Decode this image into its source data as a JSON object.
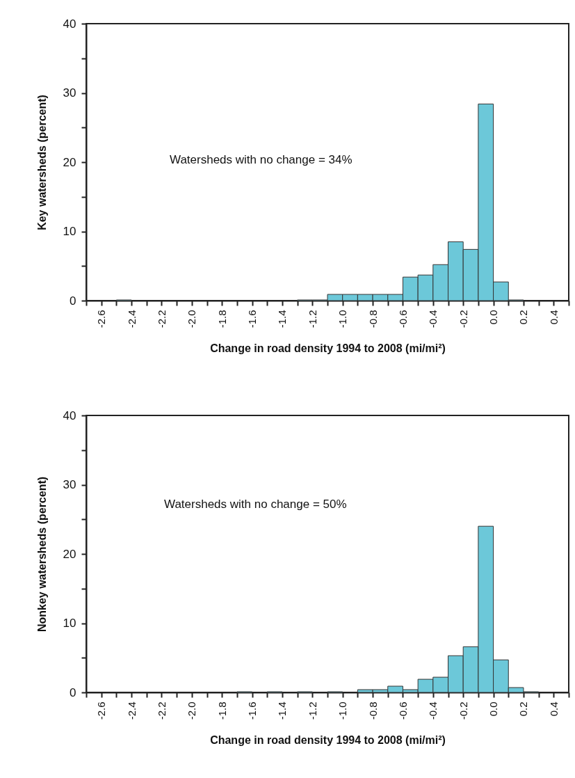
{
  "chart_data": [
    {
      "type": "histogram",
      "xlabel": "Change in road density 1994 to 2008 (mi/mi²)",
      "ylabel": "Key watersheds (percent)",
      "color": "#6cc8d9",
      "bins": [
        -2.7,
        -2.6,
        -2.5,
        -2.4,
        -2.3,
        -2.2,
        -2.1,
        -2.0,
        -1.9,
        -1.8,
        -1.7,
        -1.6,
        -1.5,
        -1.4,
        -1.3,
        -1.2,
        -1.1,
        -1.0,
        -0.9,
        -0.8,
        -0.7,
        -0.6,
        -0.5,
        -0.4,
        -0.3,
        -0.2,
        -0.1,
        0.0,
        0.1,
        0.2,
        0.3,
        0.4,
        0.5
      ],
      "values": [
        0,
        0,
        0.1,
        0,
        0,
        0,
        0,
        0,
        0,
        0,
        0,
        0,
        0,
        0,
        0.1,
        0.1,
        0.9,
        0.9,
        0.9,
        0.9,
        0.9,
        3.4,
        3.7,
        5.2,
        8.5,
        7.4,
        28.4,
        2.7,
        0.1,
        0,
        0,
        0
      ],
      "xlim": [
        -2.7,
        0.5
      ],
      "xticks": [
        {
          "value": -2.7,
          "label": null
        },
        -2.6,
        {
          "value": -2.5,
          "label": null
        },
        -2.4,
        {
          "value": -2.3,
          "label": null
        },
        -2.2,
        {
          "value": -2.1,
          "label": null
        },
        {
          "value": -2,
          "label": "-2.0"
        },
        {
          "value": -1.9,
          "label": null
        },
        -1.8,
        {
          "value": -1.7,
          "label": null
        },
        -1.6,
        {
          "value": -1.5,
          "label": null
        },
        -1.4,
        {
          "value": -1.3,
          "label": null
        },
        -1.2,
        {
          "value": -1.1,
          "label": null
        },
        {
          "value": -1,
          "label": "-1.0"
        },
        {
          "value": -0.9,
          "label": null
        },
        -0.8,
        {
          "value": -0.7,
          "label": null
        },
        -0.6,
        {
          "value": -0.5,
          "label": null
        },
        -0.4,
        {
          "value": -0.3,
          "label": null
        },
        -0.2,
        {
          "value": -0.1,
          "label": null
        },
        {
          "value": 0,
          "label": "0.0"
        },
        {
          "value": 0.1,
          "label": null
        },
        0.2,
        {
          "value": 0.3,
          "label": null
        },
        0.4,
        {
          "value": 0.5,
          "label": null
        }
      ],
      "ylim": [
        0,
        40
      ],
      "yticks": [
        0,
        {
          "value": 5,
          "label": null
        },
        10,
        {
          "value": 15,
          "label": null
        },
        20,
        {
          "value": 25,
          "label": null
        },
        30,
        {
          "value": 35,
          "label": null
        },
        40
      ],
      "annotations": [
        "Watersheds with no change = 34%"
      ]
    },
    {
      "type": "histogram",
      "xlabel": "Change in road density 1994 to 2008 (mi/mi²)",
      "ylabel": "Nonkey watersheds (percent)",
      "color": "#6cc8d9",
      "bins": [
        -2.7,
        -2.6,
        -2.5,
        -2.4,
        -2.3,
        -2.2,
        -2.1,
        -2.0,
        -1.9,
        -1.8,
        -1.7,
        -1.6,
        -1.5,
        -1.4,
        -1.3,
        -1.2,
        -1.1,
        -1.0,
        -0.9,
        -0.8,
        -0.7,
        -0.6,
        -0.5,
        -0.4,
        -0.3,
        -0.2,
        -0.1,
        0.0,
        0.1,
        0.2,
        0.3,
        0.4,
        0.5
      ],
      "values": [
        0,
        0,
        0,
        0,
        0,
        0,
        0,
        0,
        0,
        0,
        0.1,
        0,
        0.1,
        0,
        0.1,
        0,
        0.1,
        0,
        0.4,
        0.4,
        0.9,
        0.4,
        1.9,
        2.2,
        5.3,
        6.6,
        24.0,
        4.7,
        0.7,
        0.1,
        0,
        0
      ],
      "xlim": [
        -2.7,
        0.5
      ],
      "xticks": [
        {
          "value": -2.7,
          "label": null
        },
        -2.6,
        {
          "value": -2.5,
          "label": null
        },
        -2.4,
        {
          "value": -2.3,
          "label": null
        },
        -2.2,
        {
          "value": -2.1,
          "label": null
        },
        {
          "value": -2,
          "label": "-2.0"
        },
        {
          "value": -1.9,
          "label": null
        },
        -1.8,
        {
          "value": -1.7,
          "label": null
        },
        -1.6,
        {
          "value": -1.5,
          "label": null
        },
        -1.4,
        {
          "value": -1.3,
          "label": null
        },
        -1.2,
        {
          "value": -1.1,
          "label": null
        },
        {
          "value": -1,
          "label": "-1.0"
        },
        {
          "value": -0.9,
          "label": null
        },
        -0.8,
        {
          "value": -0.7,
          "label": null
        },
        -0.6,
        {
          "value": -0.5,
          "label": null
        },
        -0.4,
        {
          "value": -0.3,
          "label": null
        },
        -0.2,
        {
          "value": -0.1,
          "label": null
        },
        {
          "value": 0,
          "label": "0.0"
        },
        {
          "value": 0.1,
          "label": null
        },
        0.2,
        {
          "value": 0.3,
          "label": null
        },
        0.4,
        {
          "value": 0.5,
          "label": null
        }
      ],
      "ylim": [
        0,
        40
      ],
      "yticks": [
        0,
        {
          "value": 5,
          "label": null
        },
        10,
        {
          "value": 15,
          "label": null
        },
        20,
        {
          "value": 25,
          "label": null
        },
        30,
        {
          "value": 35,
          "label": null
        },
        40
      ],
      "annotations": [
        "Watersheds with no change = 50%"
      ]
    }
  ]
}
